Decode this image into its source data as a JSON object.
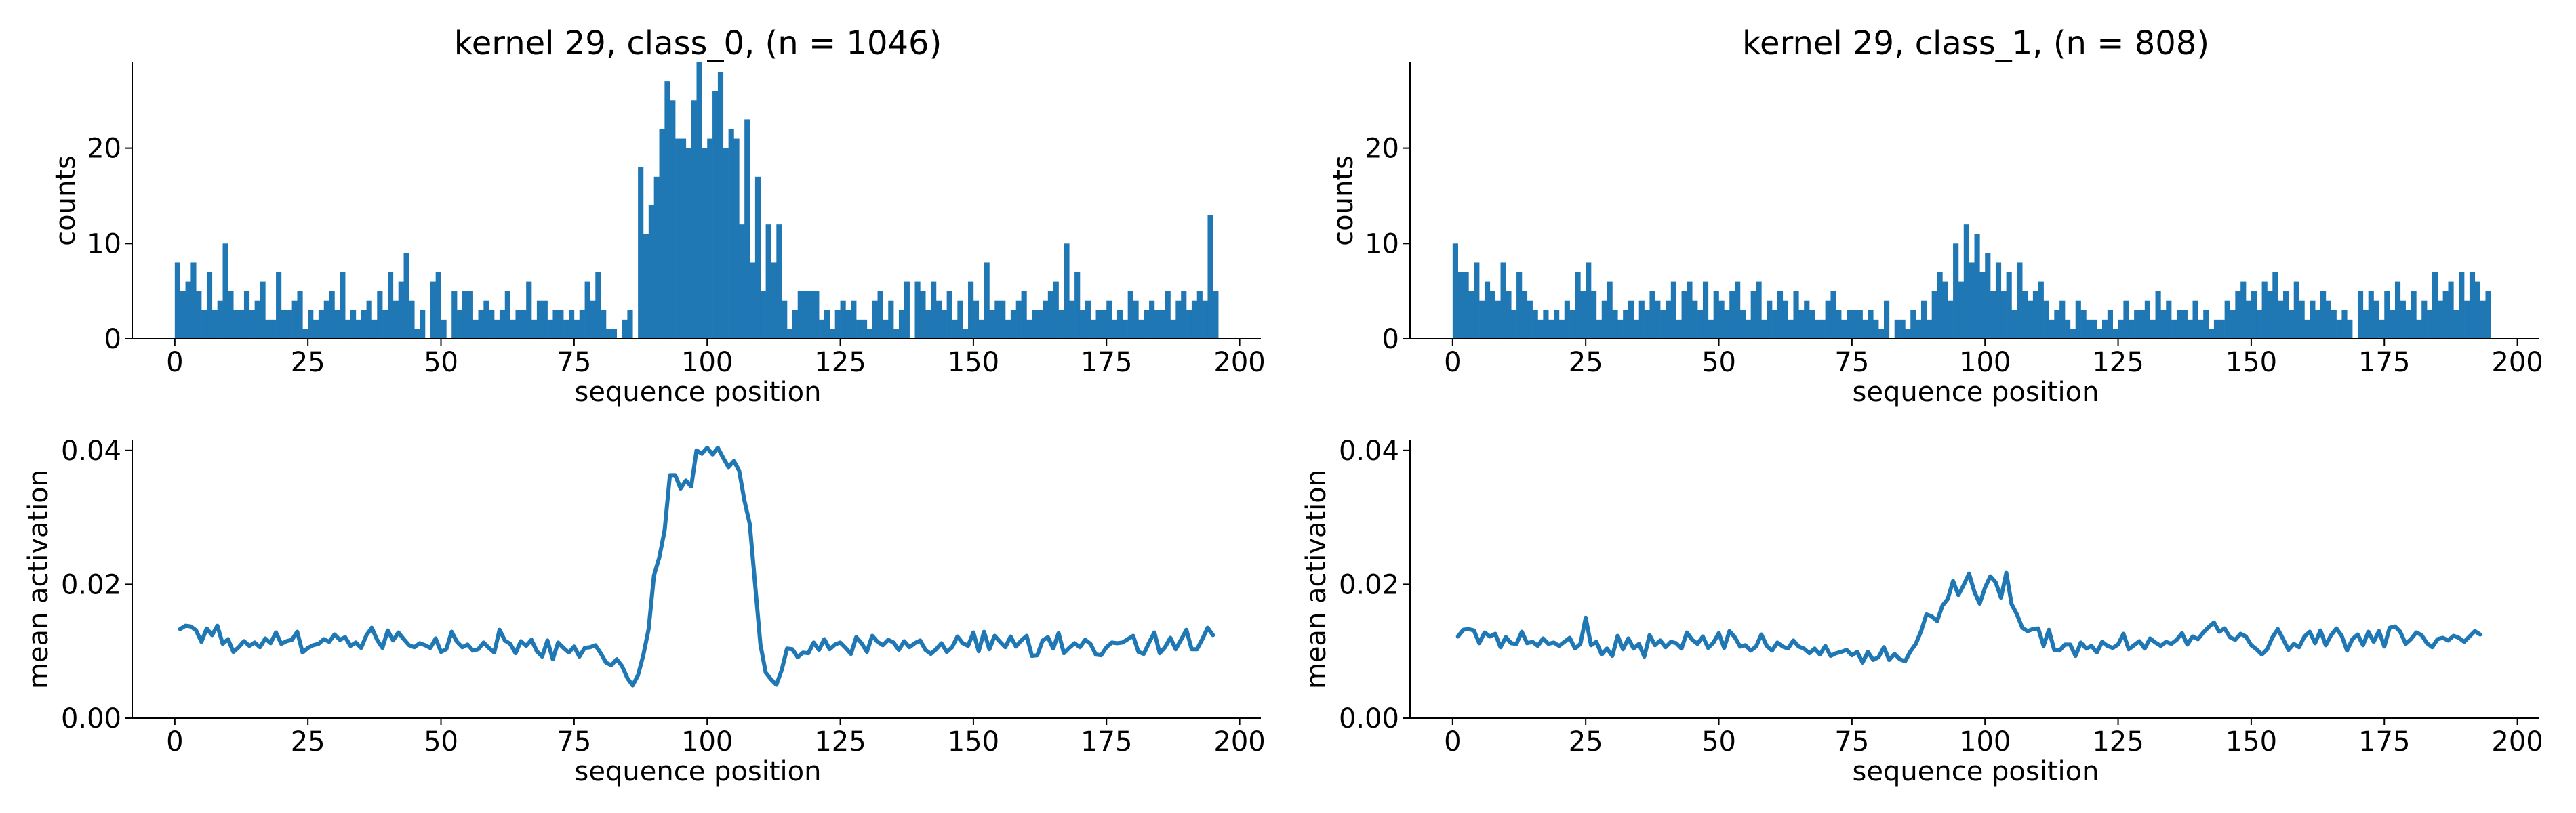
{
  "colors": {
    "series": "#1f77b4",
    "axis": "#000000"
  },
  "chart_data": [
    {
      "type": "bar",
      "title": "kernel 29, class_0, (n = 1046)",
      "xlabel": "sequence position",
      "ylabel": "counts",
      "xlim": [
        -8,
        204
      ],
      "ylim": [
        0,
        29
      ],
      "xticks": [
        0,
        25,
        50,
        75,
        100,
        125,
        150,
        175,
        200
      ],
      "yticks": [
        0,
        10,
        20
      ],
      "x_start": 0,
      "bin_width": 1,
      "values": [
        8,
        5,
        6,
        8,
        5,
        3,
        7,
        3,
        4,
        10,
        5,
        3,
        3,
        5,
        3,
        4,
        6,
        2,
        2,
        7,
        3,
        3,
        4,
        5,
        1,
        3,
        2,
        3,
        4,
        5,
        3,
        7,
        2,
        3,
        2,
        3,
        4,
        2,
        5,
        3,
        7,
        4,
        6,
        9,
        4,
        1,
        3,
        0,
        6,
        7,
        2,
        0,
        5,
        3,
        5,
        5,
        2,
        3,
        4,
        3,
        2,
        3,
        5,
        2,
        3,
        3,
        6,
        2,
        4,
        4,
        2,
        3,
        3,
        2,
        3,
        2,
        3,
        6,
        4,
        7,
        3,
        1,
        1,
        0,
        2,
        3,
        0,
        18,
        11,
        14,
        17,
        22,
        27,
        25,
        21,
        21,
        20,
        25,
        29,
        20,
        21,
        26,
        28,
        20,
        22,
        21,
        12,
        23,
        8,
        17,
        5,
        12,
        8,
        12,
        4,
        1,
        3,
        5,
        5,
        5,
        5,
        2,
        3,
        1,
        3,
        4,
        3,
        4,
        2,
        2,
        1,
        4,
        5,
        2,
        4,
        1,
        3,
        6,
        0,
        6,
        5,
        3,
        6,
        4,
        3,
        5,
        2,
        4,
        1,
        6,
        4,
        2,
        8,
        3,
        4,
        4,
        2,
        3,
        4,
        5,
        2,
        3,
        3,
        4,
        5,
        6,
        3,
        10,
        4,
        7,
        3,
        4,
        2,
        3,
        3,
        4,
        2,
        3,
        2,
        5,
        4,
        2,
        3,
        4,
        3,
        3,
        5,
        2,
        4,
        5,
        3,
        4,
        5,
        4,
        13,
        5
      ],
      "line_values": []
    },
    {
      "type": "bar",
      "title": "kernel 29, class_1, (n = 808)",
      "xlabel": "sequence position",
      "ylabel": "counts",
      "xlim": [
        -8,
        204
      ],
      "ylim": [
        0,
        29
      ],
      "xticks": [
        0,
        25,
        50,
        75,
        100,
        125,
        150,
        175,
        200
      ],
      "yticks": [
        0,
        10,
        20
      ],
      "x_start": 0,
      "bin_width": 1,
      "values": [
        10,
        7,
        7,
        5,
        8,
        4,
        6,
        5,
        4,
        8,
        5,
        3,
        7,
        5,
        4,
        3,
        2,
        3,
        2,
        3,
        2,
        4,
        3,
        7,
        5,
        8,
        5,
        2,
        4,
        6,
        3,
        2,
        3,
        4,
        2,
        4,
        3,
        5,
        4,
        3,
        4,
        6,
        2,
        5,
        6,
        4,
        3,
        6,
        2,
        5,
        4,
        3,
        5,
        6,
        3,
        2,
        5,
        6,
        2,
        4,
        3,
        5,
        4,
        2,
        5,
        3,
        4,
        3,
        2,
        2,
        4,
        5,
        3,
        2,
        3,
        3,
        3,
        2,
        3,
        2,
        1,
        4,
        0,
        2,
        2,
        1,
        3,
        2,
        4,
        2,
        5,
        7,
        6,
        4,
        10,
        6,
        12,
        8,
        11,
        7,
        9,
        5,
        8,
        5,
        7,
        3,
        8,
        5,
        4,
        5,
        6,
        4,
        2,
        3,
        4,
        2,
        1,
        4,
        3,
        2,
        2,
        1,
        2,
        3,
        1,
        2,
        4,
        2,
        3,
        3,
        4,
        2,
        5,
        3,
        4,
        2,
        3,
        3,
        2,
        4,
        2,
        3,
        1,
        2,
        2,
        4,
        3,
        5,
        6,
        4,
        5,
        3,
        6,
        5,
        7,
        4,
        5,
        3,
        6,
        4,
        2,
        4,
        3,
        5,
        4,
        3,
        2,
        3,
        2,
        0,
        5,
        3,
        5,
        4,
        2,
        5,
        3,
        6,
        4,
        3,
        5,
        2,
        4,
        3,
        7,
        4,
        5,
        6,
        3,
        7,
        4,
        7,
        6,
        4,
        5
      ],
      "line_values": []
    },
    {
      "type": "line",
      "title": "",
      "xlabel": "sequence position",
      "ylabel": "mean activation",
      "xlim": [
        -8,
        204
      ],
      "ylim": [
        0,
        0.0415
      ],
      "xticks": [
        0,
        25,
        50,
        75,
        100,
        125,
        150,
        175,
        200
      ],
      "yticks": [
        0.0,
        0.02,
        0.04
      ],
      "ytick_labels": [
        "0.00",
        "0.02",
        "0.04"
      ],
      "x_start": 1,
      "line_values": [
        0.0133,
        0.0138,
        0.0137,
        0.0131,
        0.0114,
        0.0134,
        0.0124,
        0.0138,
        0.0111,
        0.0118,
        0.0099,
        0.0106,
        0.0115,
        0.0108,
        0.0113,
        0.0106,
        0.0119,
        0.0112,
        0.0128,
        0.0111,
        0.0115,
        0.0117,
        0.0129,
        0.0098,
        0.0105,
        0.0109,
        0.0111,
        0.0118,
        0.0114,
        0.0125,
        0.0117,
        0.0121,
        0.0108,
        0.0113,
        0.0105,
        0.0124,
        0.0135,
        0.0117,
        0.0105,
        0.0131,
        0.0116,
        0.0128,
        0.0118,
        0.0109,
        0.0106,
        0.0112,
        0.0109,
        0.0105,
        0.0119,
        0.0099,
        0.0103,
        0.0129,
        0.0114,
        0.0106,
        0.011,
        0.0101,
        0.0103,
        0.0113,
        0.0105,
        0.0098,
        0.0132,
        0.0116,
        0.0111,
        0.0097,
        0.0115,
        0.0108,
        0.0117,
        0.01,
        0.0092,
        0.0116,
        0.0088,
        0.0113,
        0.0105,
        0.0098,
        0.0107,
        0.0092,
        0.0105,
        0.0106,
        0.0109,
        0.0097,
        0.0083,
        0.0079,
        0.0088,
        0.0078,
        0.006,
        0.0049,
        0.0064,
        0.0094,
        0.0133,
        0.0213,
        0.024,
        0.028,
        0.0363,
        0.0363,
        0.0343,
        0.0355,
        0.0346,
        0.04,
        0.0395,
        0.0404,
        0.0394,
        0.0404,
        0.0389,
        0.0375,
        0.0384,
        0.037,
        0.0325,
        0.029,
        0.02,
        0.011,
        0.0068,
        0.0058,
        0.005,
        0.0072,
        0.0104,
        0.0103,
        0.0091,
        0.0098,
        0.0097,
        0.0113,
        0.0102,
        0.0118,
        0.0103,
        0.011,
        0.0113,
        0.0105,
        0.0096,
        0.0121,
        0.0112,
        0.0099,
        0.0123,
        0.0114,
        0.0109,
        0.0117,
        0.0113,
        0.0102,
        0.0115,
        0.0106,
        0.0112,
        0.0116,
        0.0102,
        0.0096,
        0.0103,
        0.0112,
        0.0099,
        0.0106,
        0.0122,
        0.0112,
        0.0108,
        0.0128,
        0.01,
        0.0129,
        0.0103,
        0.0123,
        0.0114,
        0.0106,
        0.0122,
        0.0107,
        0.0116,
        0.0123,
        0.0093,
        0.0094,
        0.0116,
        0.0121,
        0.0104,
        0.0127,
        0.0097,
        0.0105,
        0.0112,
        0.0106,
        0.0117,
        0.0111,
        0.0095,
        0.0094,
        0.0106,
        0.0113,
        0.0112,
        0.0113,
        0.0118,
        0.0123,
        0.0099,
        0.0096,
        0.0113,
        0.0128,
        0.0097,
        0.0106,
        0.012,
        0.0103,
        0.0117,
        0.0132,
        0.0103,
        0.0103,
        0.0118,
        0.0135,
        0.0124
      ]
    },
    {
      "type": "line",
      "title": "",
      "xlabel": "sequence position",
      "ylabel": "mean activation",
      "xlim": [
        -8,
        204
      ],
      "ylim": [
        0,
        0.0415
      ],
      "xticks": [
        0,
        25,
        50,
        75,
        100,
        125,
        150,
        175,
        200
      ],
      "yticks": [
        0.0,
        0.02,
        0.04
      ],
      "ytick_labels": [
        "0.00",
        "0.02",
        "0.04"
      ],
      "x_start": 1,
      "line_values": [
        0.0122,
        0.0132,
        0.0133,
        0.0131,
        0.0112,
        0.0128,
        0.0122,
        0.0126,
        0.0106,
        0.0121,
        0.0112,
        0.0111,
        0.0129,
        0.0112,
        0.0114,
        0.0108,
        0.0119,
        0.0111,
        0.0113,
        0.0108,
        0.0114,
        0.012,
        0.0104,
        0.0111,
        0.015,
        0.0109,
        0.0114,
        0.0095,
        0.0104,
        0.0093,
        0.0123,
        0.0103,
        0.0119,
        0.0104,
        0.0111,
        0.0092,
        0.0124,
        0.0109,
        0.0116,
        0.0106,
        0.0114,
        0.0112,
        0.0104,
        0.0128,
        0.0117,
        0.0111,
        0.0122,
        0.0105,
        0.0113,
        0.0127,
        0.0105,
        0.013,
        0.0121,
        0.0107,
        0.0109,
        0.0101,
        0.0107,
        0.0125,
        0.0108,
        0.0101,
        0.0113,
        0.0107,
        0.0104,
        0.0116,
        0.0107,
        0.0104,
        0.0097,
        0.0104,
        0.0095,
        0.0108,
        0.0093,
        0.0097,
        0.0099,
        0.0102,
        0.0094,
        0.0099,
        0.0083,
        0.0099,
        0.0087,
        0.0091,
        0.0106,
        0.0087,
        0.0096,
        0.0088,
        0.0085,
        0.01,
        0.0111,
        0.013,
        0.0155,
        0.0152,
        0.0145,
        0.0168,
        0.0178,
        0.0205,
        0.0184,
        0.0199,
        0.0216,
        0.0189,
        0.0171,
        0.0195,
        0.0212,
        0.0203,
        0.018,
        0.0217,
        0.017,
        0.0155,
        0.0135,
        0.013,
        0.0133,
        0.0134,
        0.0108,
        0.0132,
        0.0102,
        0.0101,
        0.011,
        0.011,
        0.0093,
        0.0113,
        0.0104,
        0.0108,
        0.0098,
        0.0114,
        0.0108,
        0.0105,
        0.011,
        0.0126,
        0.0103,
        0.0109,
        0.0115,
        0.0104,
        0.0119,
        0.0113,
        0.0108,
        0.0114,
        0.0111,
        0.0117,
        0.0127,
        0.011,
        0.0122,
        0.0118,
        0.0128,
        0.0136,
        0.0143,
        0.0129,
        0.0134,
        0.0121,
        0.0117,
        0.0126,
        0.0122,
        0.0109,
        0.0103,
        0.0095,
        0.0103,
        0.0121,
        0.0133,
        0.0118,
        0.0102,
        0.0111,
        0.0106,
        0.0122,
        0.0129,
        0.0112,
        0.0131,
        0.0109,
        0.0124,
        0.0134,
        0.0123,
        0.0101,
        0.0118,
        0.0125,
        0.0109,
        0.0129,
        0.0114,
        0.013,
        0.0107,
        0.0135,
        0.0137,
        0.0129,
        0.0111,
        0.0118,
        0.0128,
        0.0124,
        0.0112,
        0.0106,
        0.0118,
        0.012,
        0.0116,
        0.0123,
        0.012,
        0.0114,
        0.0122,
        0.013,
        0.0125
      ]
    }
  ]
}
